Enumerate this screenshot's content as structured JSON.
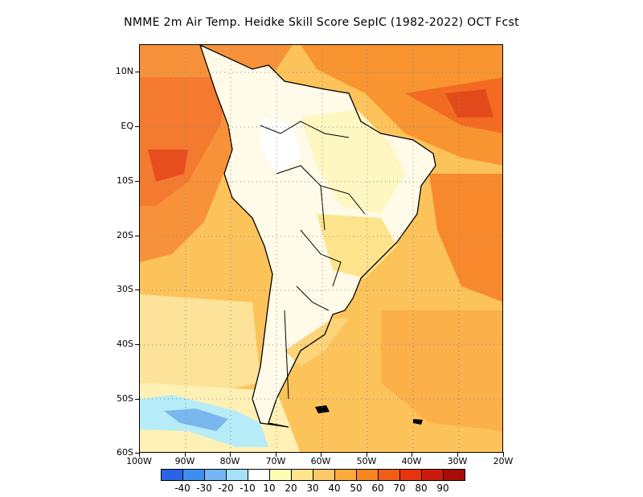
{
  "title": "NMME  2m Air Temp. Heidke Skill Score SepIC (1982-2022) OCT Fcst",
  "map": {
    "lat_labels": [
      "10N",
      "EQ",
      "10S",
      "20S",
      "30S",
      "40S",
      "50S",
      "60S"
    ],
    "lon_labels": [
      "100W",
      "90W",
      "80W",
      "70W",
      "60W",
      "50W",
      "40W",
      "30W",
      "20W"
    ],
    "lon_range": [
      -100,
      -20
    ],
    "lat_range": [
      -60,
      15
    ],
    "colors": {
      "ocean_pacific": "#f7a33c",
      "atlantic": "#f99a32",
      "land": "#ffffff",
      "light_yellow": "#fef3a8",
      "tan": "#fcd77b",
      "orange": "#f6821f",
      "red_orange": "#ee5a1c",
      "red": "#d9341a",
      "light_blue": "#b6ecf7",
      "blue": "#7ab7ee",
      "coast": "#000000"
    }
  },
  "colorbar": {
    "colors": [
      "#2a63e6",
      "#3e8ef2",
      "#77b6f6",
      "#a4e2f9",
      "#ffffff",
      "#fffdb5",
      "#fee48a",
      "#fdc968",
      "#fca93d",
      "#f7861e",
      "#f25d16",
      "#e8330f",
      "#cc1b0b",
      "#a80c07"
    ],
    "labels": [
      "-40",
      "-30",
      "-20",
      "-10",
      "10",
      "20",
      "30",
      "40",
      "50",
      "60",
      "70",
      "80",
      "90"
    ]
  }
}
